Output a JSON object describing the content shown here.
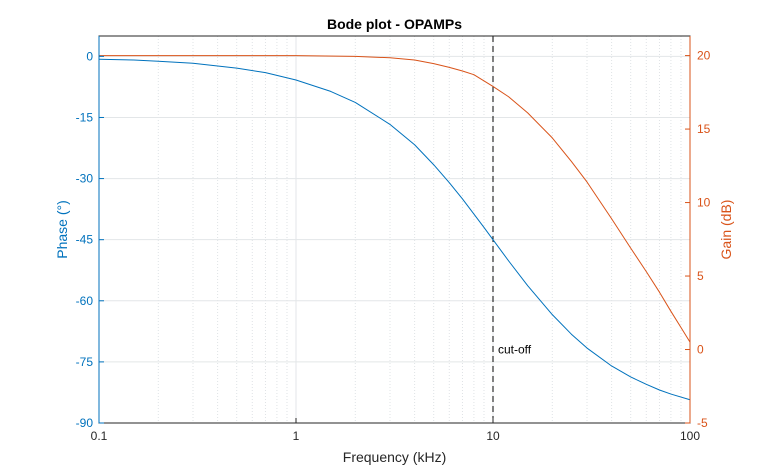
{
  "chart_data": {
    "type": "line",
    "title": "Bode plot - OPAMPs",
    "xlabel": "Frequency (kHz)",
    "ylabel_left": "Phase (°)",
    "ylabel_right": "Gain (dB)",
    "x_scale": "log",
    "xlim": [
      0.1,
      100
    ],
    "ylim_left": [
      -90,
      5
    ],
    "ylim_right": [
      -5,
      21.333
    ],
    "x_ticks": [
      0.1,
      1,
      10,
      100
    ],
    "x_tick_labels": [
      "0.1",
      "1",
      "10",
      "100"
    ],
    "y_left_ticks": [
      0,
      -15,
      -30,
      -45,
      -60,
      -75,
      -90
    ],
    "y_left_tick_labels": [
      "0",
      "-15",
      "-30",
      "-45",
      "-60",
      "-75",
      "-90"
    ],
    "y_right_ticks": [
      20,
      15,
      10,
      5,
      0,
      -5
    ],
    "y_right_tick_labels": [
      "20",
      "15",
      "10",
      "5",
      "0",
      "-5"
    ],
    "grid": true,
    "minor_grid": true,
    "colors": {
      "phase": "#0072BD",
      "gain": "#D95319",
      "cutoff": "#000000"
    },
    "series": [
      {
        "axis": "left",
        "color": "#0072BD",
        "x": [
          0.1,
          0.15,
          0.2,
          0.3,
          0.5,
          0.7,
          1,
          1.5,
          2,
          3,
          4,
          5,
          6,
          7,
          8,
          9,
          10,
          12,
          15,
          20,
          25,
          30,
          40,
          50,
          60,
          70,
          80,
          100
        ],
        "values": [
          -0.7,
          -0.9,
          -1.2,
          -1.7,
          -2.9,
          -4.0,
          -5.8,
          -8.6,
          -11.3,
          -16.7,
          -21.7,
          -26.6,
          -31.0,
          -35.0,
          -38.7,
          -42.0,
          -45.0,
          -50.2,
          -56.3,
          -63.4,
          -68.2,
          -71.6,
          -76.0,
          -78.7,
          -80.5,
          -81.9,
          -82.9,
          -84.3
        ]
      },
      {
        "axis": "right",
        "color": "#D95319",
        "x": [
          0.1,
          0.3,
          1,
          2,
          3,
          4,
          5,
          6,
          7,
          8,
          10,
          12,
          15,
          20,
          25,
          30,
          40,
          50,
          60,
          70,
          80,
          90,
          100
        ],
        "values": [
          20.0,
          20.0,
          20.0,
          19.95,
          19.85,
          19.7,
          19.45,
          19.2,
          18.95,
          18.7,
          17.9,
          17.2,
          16.1,
          14.4,
          12.8,
          11.4,
          8.9,
          6.9,
          5.3,
          3.9,
          2.6,
          1.5,
          0.5
        ]
      }
    ],
    "annotations": [
      {
        "x": 10,
        "text": "cut-off",
        "style": "vertical-dashed-line",
        "label_y_left": -73
      }
    ]
  }
}
